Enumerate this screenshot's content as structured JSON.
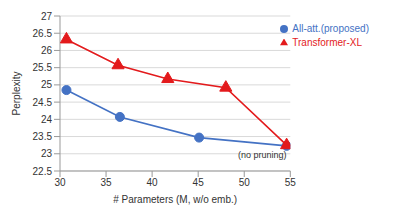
{
  "chart_data": {
    "type": "line",
    "x_label": "# Parameters (M, w/o emb.)",
    "y_label": "Perplexity",
    "xlim": [
      30,
      55
    ],
    "xticks": [
      30,
      35,
      40,
      45,
      50,
      55
    ],
    "ylim": [
      22.5,
      27
    ],
    "yticks": [
      22.5,
      23,
      23.5,
      24,
      24.5,
      25,
      25.5,
      26,
      26.5,
      27
    ],
    "grid": true,
    "legend": "top-right",
    "series": [
      {
        "name": "All-att.(proposed)",
        "color": "#4472c4",
        "marker": "circle",
        "x": [
          30.7,
          36.5,
          45.1,
          54.6
        ],
        "values": [
          24.85,
          24.07,
          23.47,
          23.23
        ]
      },
      {
        "name": "Transformer-XL",
        "color": "#e31a1c",
        "marker": "triangle",
        "x": [
          30.7,
          36.3,
          41.7,
          48.0,
          54.6
        ],
        "values": [
          26.32,
          25.57,
          25.17,
          24.92,
          23.25
        ]
      }
    ],
    "annotations": [
      {
        "text": "(no pruning)",
        "x": 54.6,
        "y": 23.23
      }
    ]
  }
}
